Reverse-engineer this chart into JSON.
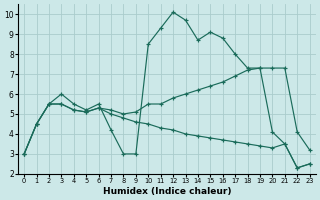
{
  "xlabel": "Humidex (Indice chaleur)",
  "bg_color": "#cce8e8",
  "grid_color": "#aacccc",
  "line_color": "#1a6b5a",
  "xlim": [
    -0.5,
    23.5
  ],
  "ylim": [
    2.0,
    10.5
  ],
  "yticks": [
    2,
    3,
    4,
    5,
    6,
    7,
    8,
    9,
    10
  ],
  "xticks": [
    0,
    1,
    2,
    3,
    4,
    5,
    6,
    7,
    8,
    9,
    10,
    11,
    12,
    13,
    14,
    15,
    16,
    17,
    18,
    19,
    20,
    21,
    22,
    23
  ],
  "lines": [
    {
      "x": [
        0,
        1,
        2,
        3,
        4,
        5,
        6,
        7,
        8,
        9,
        10,
        11,
        12,
        13,
        14,
        15,
        16,
        17,
        18,
        19,
        20,
        21,
        22,
        23
      ],
      "y": [
        3.0,
        4.5,
        5.5,
        6.0,
        5.5,
        5.2,
        5.5,
        4.2,
        3.0,
        3.0,
        8.5,
        9.3,
        10.1,
        9.7,
        8.7,
        9.1,
        8.8,
        8.0,
        7.3,
        7.3,
        4.1,
        3.5,
        2.3,
        2.5
      ]
    },
    {
      "x": [
        0,
        1,
        2,
        3,
        4,
        5,
        6,
        7,
        8,
        9,
        10,
        11,
        12,
        13,
        14,
        15,
        16,
        17,
        18,
        19,
        20,
        21,
        22,
        23
      ],
      "y": [
        3.0,
        4.5,
        5.5,
        5.5,
        5.2,
        5.1,
        5.3,
        5.2,
        5.0,
        5.1,
        5.5,
        5.5,
        5.8,
        6.0,
        6.2,
        6.4,
        6.6,
        6.9,
        7.2,
        7.3,
        7.3,
        7.3,
        4.1,
        3.2
      ]
    },
    {
      "x": [
        0,
        1,
        2,
        3,
        4,
        5,
        6,
        7,
        8,
        9,
        10,
        11,
        12,
        13,
        14,
        15,
        16,
        17,
        18,
        19,
        20,
        21,
        22,
        23
      ],
      "y": [
        3.0,
        4.5,
        5.5,
        5.5,
        5.2,
        5.1,
        5.3,
        5.0,
        4.8,
        4.6,
        4.5,
        4.3,
        4.2,
        4.0,
        3.9,
        3.8,
        3.7,
        3.6,
        3.5,
        3.4,
        3.3,
        3.5,
        2.3,
        2.5
      ]
    }
  ]
}
